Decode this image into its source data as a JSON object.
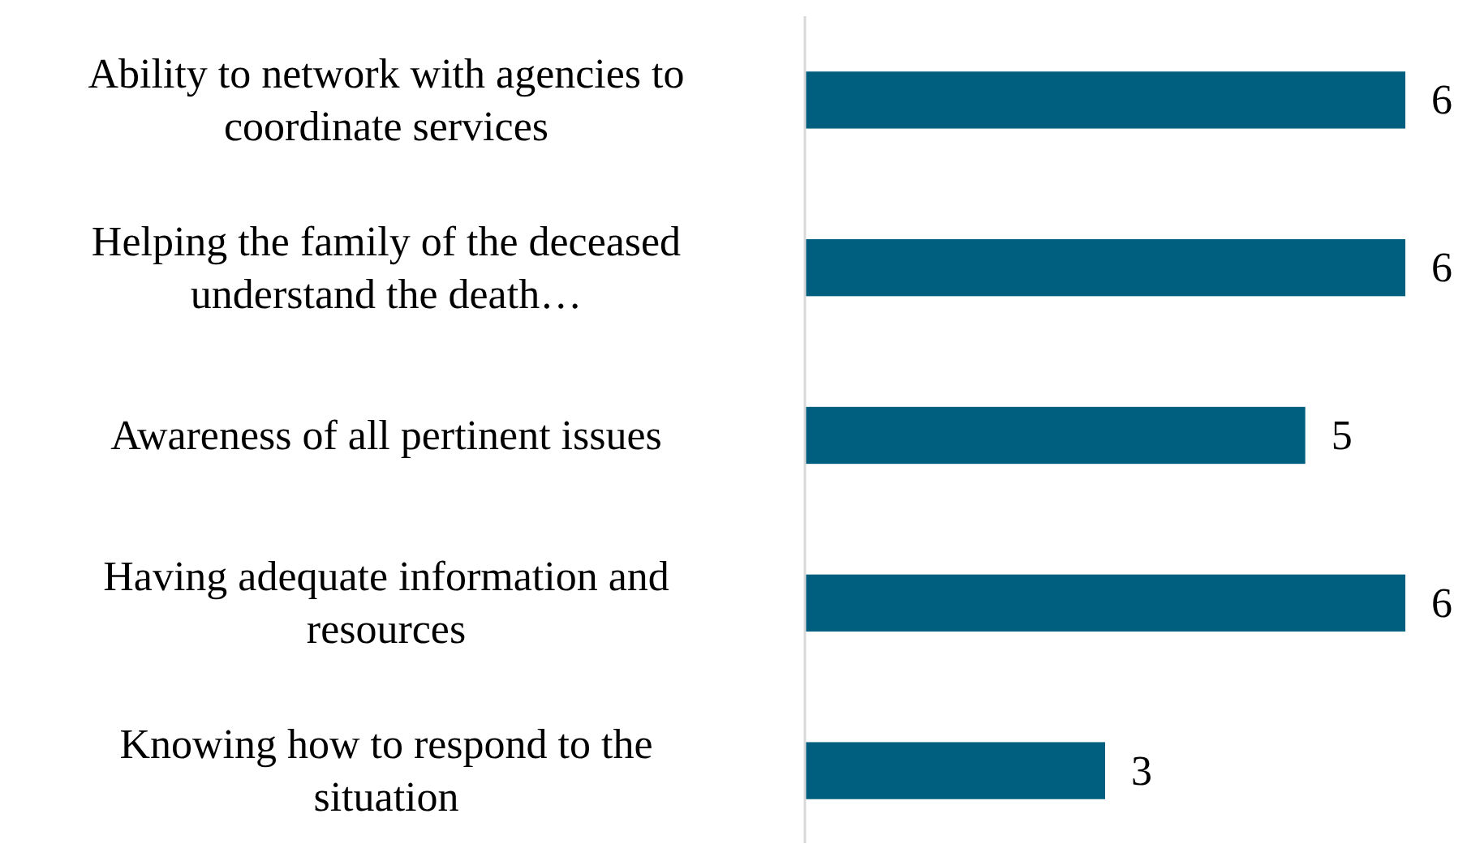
{
  "chart_data": {
    "type": "bar",
    "orientation": "horizontal",
    "categories": [
      "Ability to network with agencies to coordinate services",
      "Helping the family of the deceased understand the death…",
      "Awareness of all pertinent issues",
      "Having adequate information and resources",
      "Knowing how to respond to the situation"
    ],
    "values": [
      6,
      6,
      5,
      6,
      3
    ],
    "color": "#005f7f",
    "data_labels": true
  }
}
